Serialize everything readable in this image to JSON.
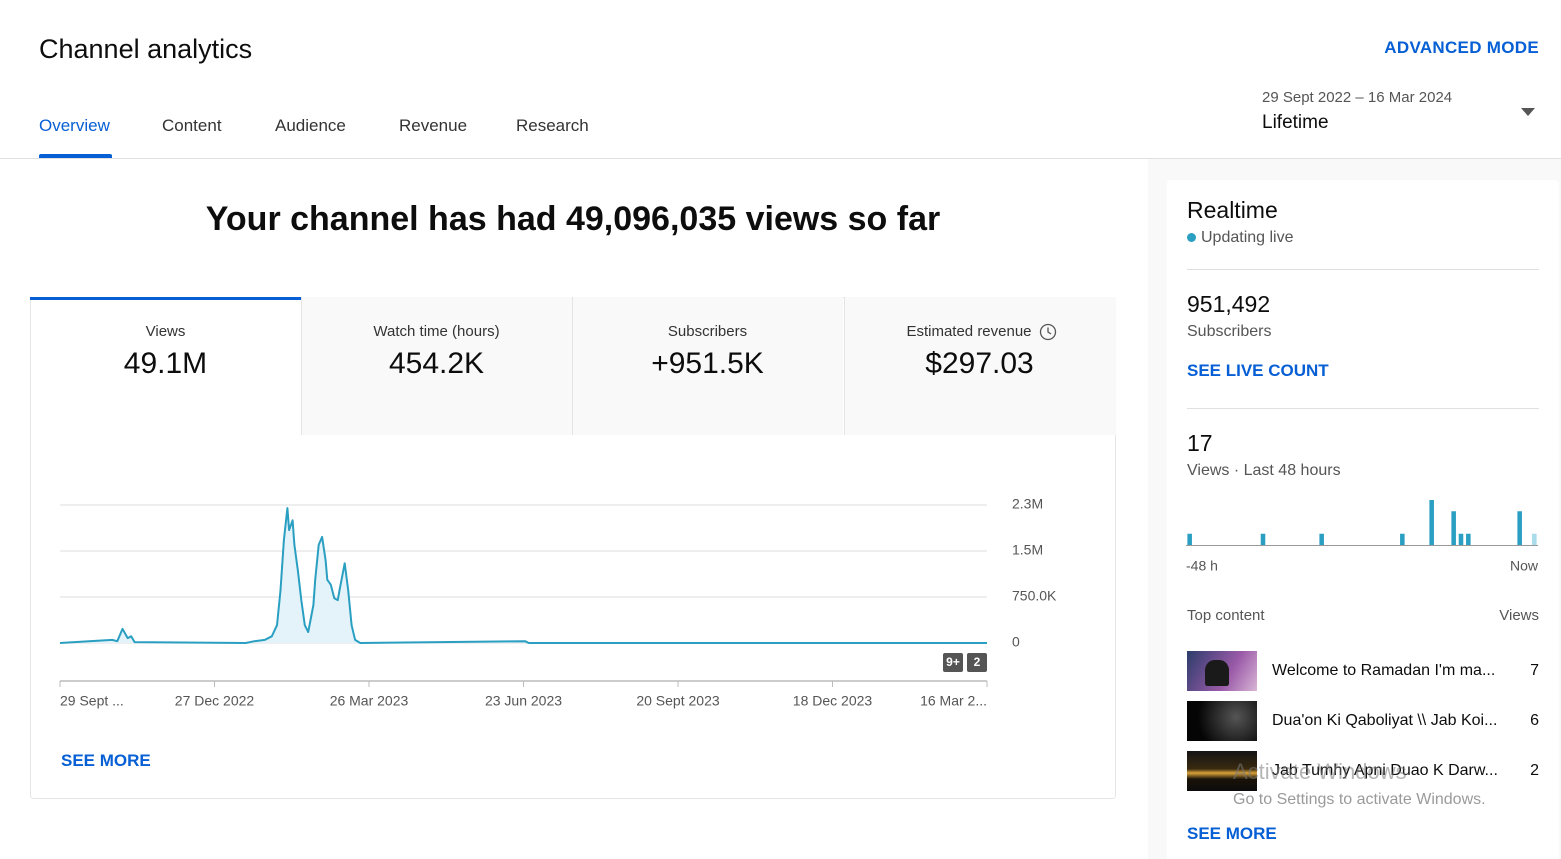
{
  "header": {
    "title": "Channel analytics",
    "advanced_mode": "ADVANCED MODE",
    "tabs": [
      "Overview",
      "Content",
      "Audience",
      "Revenue",
      "Research"
    ],
    "date_range": "29 Sept 2022 – 16 Mar 2024",
    "period": "Lifetime"
  },
  "headline": "Your channel has had 49,096,035 views so far",
  "metrics": [
    {
      "label": "Views",
      "value": "49.1M"
    },
    {
      "label": "Watch time (hours)",
      "value": "454.2K"
    },
    {
      "label": "Subscribers",
      "value": "+951.5K"
    },
    {
      "label": "Estimated revenue",
      "value": "$297.03"
    }
  ],
  "see_more": "SEE MORE",
  "realtime": {
    "title": "Realtime",
    "status": "Updating live",
    "subscribers": "951,492",
    "subscribers_label": "Subscribers",
    "live_count": "SEE LIVE COUNT",
    "views": "17",
    "views_label": "Views · Last 48 hours",
    "top_content_label": "Top content",
    "views_col": "Views",
    "top_content": [
      {
        "title": "Welcome to Ramadan I'm ma...",
        "views": "7"
      },
      {
        "title": "Dua'on Ki Qaboliyat \\\\ Jab Koi...",
        "views": "6"
      },
      {
        "title": "Jab Tumhy Apni Duao K Darw...",
        "views": "2"
      }
    ],
    "see_more": "SEE MORE"
  },
  "watermark": {
    "title": "Activate Windows",
    "text": "Go to Settings to activate Windows."
  },
  "chart_data": [
    {
      "type": "line",
      "color": "#2a9fc1",
      "area_color": "#e3f3f9",
      "x": [
        "2022-09-29",
        "2022-10-29",
        "2022-11-01",
        "2022-11-04",
        "2022-11-07",
        "2022-11-09",
        "2022-11-11",
        "2023-01-14",
        "2023-01-19",
        "2023-01-25",
        "2023-01-29",
        "2023-02-01",
        "2023-02-03",
        "2023-02-05",
        "2023-02-07",
        "2023-02-08",
        "2023-02-10",
        "2023-02-11",
        "2023-02-13",
        "2023-02-15",
        "2023-02-17",
        "2023-02-19",
        "2023-02-22",
        "2023-02-23",
        "2023-02-25",
        "2023-02-27",
        "2023-03-01",
        "2023-03-02",
        "2023-03-04",
        "2023-03-06",
        "2023-03-08",
        "2023-03-09",
        "2023-03-12",
        "2023-03-14",
        "2023-03-16",
        "2023-03-18",
        "2023-03-21",
        "2023-06-24",
        "2023-06-26",
        "2024-03-16"
      ],
      "values": [
        0,
        50000,
        30000,
        230000,
        80000,
        110000,
        15000,
        0,
        30000,
        50000,
        110000,
        290000,
        860000,
        1680000,
        2200000,
        1840000,
        2000000,
        1600000,
        1190000,
        700000,
        290000,
        180000,
        620000,
        1030000,
        1600000,
        1730000,
        1350000,
        1030000,
        950000,
        730000,
        700000,
        860000,
        1300000,
        860000,
        290000,
        50000,
        0,
        30000,
        0,
        0
      ],
      "xlim": [
        "2022-09-29",
        "2024-03-16"
      ],
      "xticks": [
        {
          "value": "2022-09-29",
          "label": "29 Sept ..."
        },
        {
          "value": "2022-12-27",
          "label": "27 Dec 2022"
        },
        {
          "value": "2023-03-26",
          "label": "26 Mar 2023"
        },
        {
          "value": "2023-06-23",
          "label": "23 Jun 2023"
        },
        {
          "value": "2023-09-20",
          "label": "20 Sept 2023"
        },
        {
          "value": "2023-12-18",
          "label": "18 Dec 2023"
        },
        {
          "value": "2024-03-16",
          "label": "16 Mar 2..."
        }
      ],
      "ylim": [
        0,
        2250000
      ],
      "yticks": [
        0,
        {
          "value": 750000,
          "label": "750.0K"
        },
        {
          "value": 1500000,
          "label": "1.5M"
        },
        {
          "value": 2250000,
          "label": "2.3M"
        }
      ],
      "grid": true,
      "annotations": [
        "9+",
        "2"
      ]
    },
    {
      "type": "bar",
      "color": "#2a9fc1",
      "current_color": "#a9dbea",
      "categories": [
        "-48 h",
        null,
        null,
        null,
        null,
        null,
        null,
        null,
        null,
        null,
        null,
        null,
        null,
        null,
        null,
        null,
        null,
        null,
        null,
        null,
        null,
        null,
        null,
        null,
        null,
        null,
        null,
        null,
        null,
        null,
        null,
        null,
        null,
        null,
        null,
        null,
        null,
        null,
        null,
        null,
        null,
        null,
        null,
        null,
        null,
        null,
        null,
        "Now"
      ],
      "values": [
        1,
        0,
        0,
        0,
        0,
        0,
        0,
        0,
        0,
        0,
        1,
        0,
        0,
        0,
        0,
        0,
        0,
        0,
        1,
        0,
        0,
        0,
        0,
        0,
        0,
        0,
        0,
        0,
        0,
        1,
        0,
        0,
        0,
        4,
        0,
        0,
        3,
        1,
        1,
        0,
        0,
        0,
        0,
        0,
        0,
        3,
        0,
        1
      ],
      "ylim": [
        0,
        4
      ]
    }
  ]
}
